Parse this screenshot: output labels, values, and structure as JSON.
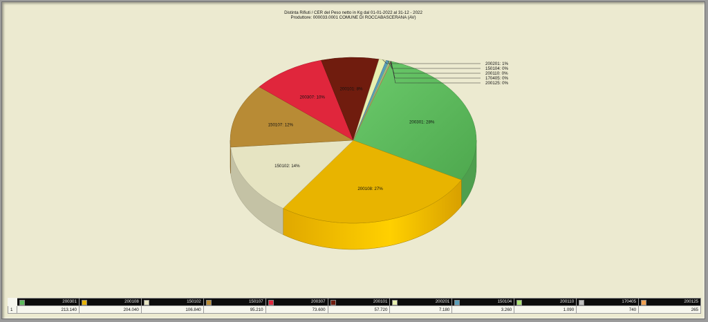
{
  "title": {
    "line1": "Distinta Rifiuti / CER   del Peso netto in Kg dal 01-01-2022 al 31-12 - 2022",
    "line2": "Produttore: 000033.0001 COMUNE DI ROCCABASCERANA (AV)"
  },
  "chart_data": {
    "type": "pie",
    "title": "Distinta Rifiuti / CER   del Peso netto in Kg dal 01-01-2022 al 31-12 - 2022",
    "subtitle": "Produttore: 000033.0001 COMUNE DI ROCCABASCERANA (AV)",
    "categories": [
      "200301",
      "200108",
      "150102",
      "150107",
      "200307",
      "200101",
      "200201",
      "150104",
      "200110",
      "170405",
      "200125"
    ],
    "values": [
      213140,
      204040,
      106840,
      95210,
      73600,
      57720,
      7180,
      3260,
      1090,
      740,
      265
    ],
    "value_labels": [
      "213.140",
      "204.040",
      "106.840",
      "95.210",
      "73.600",
      "57.720",
      "7.180",
      "3.260",
      "1.090",
      "740",
      "265"
    ],
    "slice_labels": [
      "200301: 28%",
      "200108: 27%",
      "150102: 14%",
      "150107: 12%",
      "200307: 10%",
      "200101: 8%",
      "200201: 1%",
      "150104: 0%",
      "200110: 0%",
      "170405: 0%",
      "200125: 0%"
    ],
    "colors": [
      "#5cbb5c",
      "#e8b400",
      "#e6e4c2",
      "#b88b35",
      "#e0263c",
      "#701c0e",
      "#e8f0b0",
      "#5a9db8",
      "#a8e070",
      "#bfbfbf",
      "#f0a050"
    ],
    "row_label": "1",
    "legend": "bottom-table",
    "style": "3d"
  }
}
